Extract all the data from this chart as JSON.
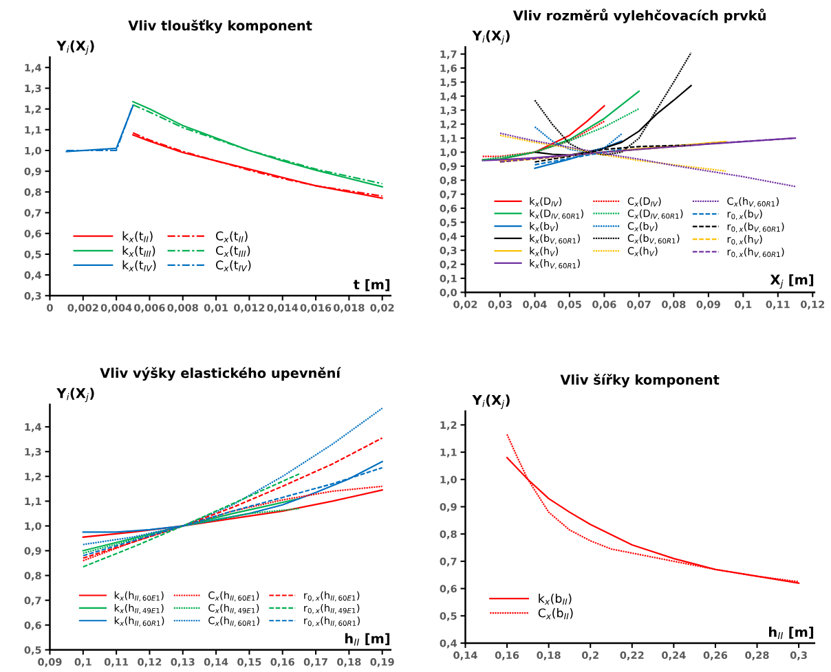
{
  "chart_data": [
    {
      "type": "line",
      "title": "Vliv tloušťky komponent",
      "xlabel": "t [m]",
      "ylabel": "Y$_{i}$(X$_{j}$)",
      "legend": "bottom left",
      "grid": false,
      "xlim": [
        0,
        0.0205
      ],
      "ylim": [
        0.3,
        1.45
      ],
      "xticks": [
        {
          "value": 0,
          "label": "0"
        },
        {
          "value": 0.002,
          "label": "0,002"
        },
        {
          "value": 0.004,
          "label": "0,004"
        },
        {
          "value": 0.006,
          "label": "0,006"
        },
        {
          "value": 0.008,
          "label": "0,008"
        },
        {
          "value": 0.01,
          "label": "0,01"
        },
        {
          "value": 0.012,
          "label": "0,012"
        },
        {
          "value": 0.014,
          "label": "0,014"
        },
        {
          "value": 0.016,
          "label": "0,016"
        },
        {
          "value": 0.018,
          "label": "0,018"
        },
        {
          "value": 0.02,
          "label": "0,02"
        }
      ],
      "yticks": [
        {
          "value": 0.3,
          "label": "0,3"
        },
        {
          "value": 0.4,
          "label": "0,4"
        },
        {
          "value": 0.5,
          "label": "0,5"
        },
        {
          "value": 0.6,
          "label": "0,6"
        },
        {
          "value": 0.7,
          "label": "0,7"
        },
        {
          "value": 0.8,
          "label": "0,8"
        },
        {
          "value": 0.9,
          "label": "0,9"
        },
        {
          "value": 1.0,
          "label": "1,0"
        },
        {
          "value": 1.1,
          "label": "1,1"
        },
        {
          "value": 1.2,
          "label": "1,2"
        },
        {
          "value": 1.3,
          "label": "1,3"
        },
        {
          "value": 1.4,
          "label": "1,4"
        }
      ],
      "series": [
        {
          "name": "k$_{x}$(t$_{II}$)",
          "color": "#ff0000",
          "line_style": "solid",
          "x": [
            0.005,
            0.006,
            0.008,
            0.01,
            0.012,
            0.014,
            0.016,
            0.018,
            0.02
          ],
          "values": [
            1.075,
            1.045,
            0.99,
            0.95,
            0.91,
            0.87,
            0.83,
            0.8,
            0.77
          ]
        },
        {
          "name": "k$_{x}$(t$_{III}$)",
          "color": "#00b050",
          "line_style": "solid",
          "x": [
            0.005,
            0.006,
            0.008,
            0.01,
            0.012,
            0.014,
            0.016,
            0.018,
            0.02
          ],
          "values": [
            1.235,
            1.2,
            1.12,
            1.06,
            1.0,
            0.95,
            0.905,
            0.865,
            0.825
          ]
        },
        {
          "name": "k$_{x}$(t$_{IV}$)",
          "color": "#0070c0",
          "line_style": "solid",
          "x": [
            0.001,
            0.004,
            0.005
          ],
          "values": [
            0.995,
            1.01,
            1.215
          ]
        },
        {
          "name": "C$_{x}$(t$_{II}$)",
          "color": "#ff0000",
          "line_style": "dashdot",
          "x": [
            0.005,
            0.006,
            0.008,
            0.01,
            0.012,
            0.014,
            0.016,
            0.018,
            0.02
          ],
          "values": [
            1.085,
            1.05,
            0.995,
            0.95,
            0.905,
            0.865,
            0.83,
            0.805,
            0.78
          ]
        },
        {
          "name": "C$_{x}$(t$_{III}$)",
          "color": "#00b050",
          "line_style": "dashdot",
          "x": [
            0.005,
            0.006,
            0.008,
            0.01,
            0.012,
            0.014,
            0.016,
            0.018,
            0.02
          ],
          "values": [
            1.22,
            1.185,
            1.11,
            1.055,
            1.0,
            0.955,
            0.91,
            0.875,
            0.84
          ]
        },
        {
          "name": "C$_{x}$(t$_{IV}$)",
          "color": "#0070c0",
          "line_style": "dashdot",
          "x": [
            0.001,
            0.004,
            0.005
          ],
          "values": [
            1.0,
            1.0,
            1.22
          ]
        }
      ]
    },
    {
      "type": "line",
      "title": "Vliv rozměrů vylehčovacích prvků",
      "xlabel": "X$_{j}$ [m]",
      "ylabel": "Y$_{i}$(X$_{j}$)",
      "legend": "bottom",
      "grid": false,
      "xlim": [
        0.02,
        0.1205
      ],
      "ylim": [
        0,
        1.75
      ],
      "xticks": [
        {
          "value": 0.02,
          "label": "0,02"
        },
        {
          "value": 0.03,
          "label": "0,03"
        },
        {
          "value": 0.04,
          "label": "0,04"
        },
        {
          "value": 0.05,
          "label": "0,05"
        },
        {
          "value": 0.06,
          "label": "0,06"
        },
        {
          "value": 0.07,
          "label": "0,07"
        },
        {
          "value": 0.08,
          "label": "0,08"
        },
        {
          "value": 0.09,
          "label": "0,09"
        },
        {
          "value": 0.1,
          "label": "0,1"
        },
        {
          "value": 0.11,
          "label": "0,11"
        },
        {
          "value": 0.12,
          "label": "0,12"
        }
      ],
      "yticks": [
        {
          "value": 0,
          "label": "0,0"
        },
        {
          "value": 0.1,
          "label": "0,1"
        },
        {
          "value": 0.2,
          "label": "0,2"
        },
        {
          "value": 0.3,
          "label": "0,3"
        },
        {
          "value": 0.4,
          "label": "0,4"
        },
        {
          "value": 0.5,
          "label": "0,5"
        },
        {
          "value": 0.6,
          "label": "0,6"
        },
        {
          "value": 0.7,
          "label": "0,7"
        },
        {
          "value": 0.8,
          "label": "0,8"
        },
        {
          "value": 0.9,
          "label": "0,9"
        },
        {
          "value": 1.0,
          "label": "1,0"
        },
        {
          "value": 1.1,
          "label": "1,1"
        },
        {
          "value": 1.2,
          "label": "1,2"
        },
        {
          "value": 1.3,
          "label": "1,3"
        },
        {
          "value": 1.4,
          "label": "1,4"
        },
        {
          "value": 1.5,
          "label": "1,5"
        },
        {
          "value": 1.6,
          "label": "1,6"
        },
        {
          "value": 1.7,
          "label": "1,7"
        }
      ],
      "series": [
        {
          "name": "k$_{x}$(D$_{IV}$)",
          "color": "#ff0000",
          "line_style": "solid",
          "x": [
            0.025,
            0.03,
            0.04,
            0.05,
            0.055,
            0.06
          ],
          "values": [
            0.945,
            0.95,
            1.0,
            1.12,
            1.22,
            1.33
          ]
        },
        {
          "name": "k$_{x}$(D$_{IV,60R1}$)",
          "color": "#00b050",
          "line_style": "solid",
          "x": [
            0.025,
            0.03,
            0.04,
            0.05,
            0.06,
            0.07
          ],
          "values": [
            0.945,
            0.95,
            1.0,
            1.09,
            1.24,
            1.435
          ]
        },
        {
          "name": "k$_{x}$(b$_{V}$)",
          "color": "#0070c0",
          "line_style": "solid",
          "x": [
            0.04,
            0.05,
            0.06,
            0.065
          ],
          "values": [
            0.885,
            0.95,
            1.03,
            1.08
          ]
        },
        {
          "name": "k$_{x}$(b$_{V,60R1}$)",
          "color": "#000000",
          "line_style": "solid",
          "x": [
            0.04,
            0.045,
            0.05,
            0.055,
            0.06,
            0.065,
            0.07,
            0.075,
            0.08,
            0.085
          ],
          "values": [
            1.0,
            0.985,
            0.98,
            1.0,
            1.03,
            1.07,
            1.15,
            1.27,
            1.37,
            1.475
          ]
        },
        {
          "name": "k$_{x}$(h$_{V}$)",
          "color": "#ffc000",
          "line_style": "solid",
          "x": [
            0.03,
            0.04,
            0.05,
            0.06,
            0.07,
            0.08,
            0.09,
            0.095
          ],
          "values": [
            0.935,
            0.955,
            0.98,
            1.0,
            1.025,
            1.045,
            1.065,
            1.075
          ]
        },
        {
          "name": "k$_{x}$(h$_{V,60R1}$)",
          "color": "#7030a0",
          "line_style": "solid",
          "x": [
            0.025,
            0.03,
            0.04,
            0.05,
            0.06,
            0.08,
            0.1,
            0.115
          ],
          "values": [
            0.94,
            0.945,
            0.96,
            0.98,
            1.0,
            1.04,
            1.075,
            1.1
          ]
        },
        {
          "name": "C$_{x}$(D$_{IV}$)",
          "color": "#ff0000",
          "line_style": "dotted",
          "x": [
            0.025,
            0.03,
            0.04,
            0.05,
            0.06
          ],
          "values": [
            0.97,
            0.97,
            1.0,
            1.08,
            1.22
          ]
        },
        {
          "name": "C$_{x}$(D$_{IV,60R1}$)",
          "color": "#00b050",
          "line_style": "dotted",
          "x": [
            0.025,
            0.04,
            0.05,
            0.06,
            0.07
          ],
          "values": [
            0.945,
            1.0,
            1.08,
            1.18,
            1.31
          ]
        },
        {
          "name": "C$_{x}$(b$_{V}$)",
          "color": "#0070c0",
          "line_style": "dotted",
          "x": [
            0.04,
            0.045,
            0.05,
            0.055,
            0.06,
            0.065
          ],
          "values": [
            1.18,
            1.08,
            1.02,
            1.0,
            1.03,
            1.13
          ]
        },
        {
          "name": "C$_{x}$(b$_{V,60R1}$)",
          "color": "#000000",
          "line_style": "dotted",
          "x": [
            0.04,
            0.045,
            0.05,
            0.055,
            0.06,
            0.065,
            0.07,
            0.075,
            0.08,
            0.085
          ],
          "values": [
            1.37,
            1.2,
            1.06,
            1.0,
            0.98,
            1.0,
            1.1,
            1.3,
            1.5,
            1.71
          ]
        },
        {
          "name": "C$_{x}$(h$_{V}$)",
          "color": "#ffc000",
          "line_style": "dotted",
          "x": [
            0.03,
            0.04,
            0.05,
            0.06,
            0.07,
            0.08,
            0.09,
            0.095
          ],
          "values": [
            1.12,
            1.07,
            1.03,
            0.98,
            0.94,
            0.91,
            0.88,
            0.865
          ]
        },
        {
          "name": "C$_{x}$(h$_{V,60R1}$)",
          "color": "#7030a0",
          "line_style": "dotted",
          "x": [
            0.03,
            0.04,
            0.05,
            0.06,
            0.07,
            0.08,
            0.09,
            0.1,
            0.115
          ],
          "values": [
            1.135,
            1.08,
            1.035,
            0.99,
            0.95,
            0.905,
            0.865,
            0.825,
            0.755
          ]
        },
        {
          "name": "r$_{0,x}$(b$_{V}$)",
          "color": "#0070c0",
          "line_style": "dashed",
          "x": [
            0.04,
            0.05,
            0.06,
            0.065
          ],
          "values": [
            0.91,
            0.955,
            1.0,
            1.02
          ]
        },
        {
          "name": "r$_{0,x}$(b$_{V,60R1}$)",
          "color": "#000000",
          "line_style": "dashed",
          "x": [
            0.04,
            0.05,
            0.06,
            0.07,
            0.085
          ],
          "values": [
            0.93,
            0.97,
            1.02,
            1.04,
            1.05
          ]
        },
        {
          "name": "r$_{0,x}$(h$_{V}$)",
          "color": "#ffc000",
          "line_style": "dashed",
          "x": [
            0.03,
            0.04,
            0.06,
            0.08,
            0.095
          ],
          "values": [
            0.93,
            0.95,
            1.0,
            1.04,
            1.075
          ]
        },
        {
          "name": "r$_{0,x}$(h$_{V,60R1}$)",
          "color": "#7030a0",
          "line_style": "dashed",
          "x": [
            0.03,
            0.06,
            0.09,
            0.115
          ],
          "values": [
            0.93,
            1.0,
            1.06,
            1.1
          ]
        }
      ]
    },
    {
      "type": "line",
      "title": "Vliv výšky elastického upevnění",
      "xlabel": "h$_{II}$ [m]",
      "ylabel": "Y$_{i}$(X$_{j}$)",
      "legend": "bottom",
      "grid": false,
      "xlim": [
        0.09,
        0.1925
      ],
      "ylim": [
        0.5,
        1.49
      ],
      "xticks": [
        {
          "value": 0.09,
          "label": "0,09"
        },
        {
          "value": 0.1,
          "label": "0,1"
        },
        {
          "value": 0.11,
          "label": "0,11"
        },
        {
          "value": 0.12,
          "label": "0,12"
        },
        {
          "value": 0.13,
          "label": "0,13"
        },
        {
          "value": 0.14,
          "label": "0,14"
        },
        {
          "value": 0.15,
          "label": "0,15"
        },
        {
          "value": 0.16,
          "label": "0,16"
        },
        {
          "value": 0.17,
          "label": "0,17"
        },
        {
          "value": 0.18,
          "label": "0,18"
        },
        {
          "value": 0.19,
          "label": "0,19"
        }
      ],
      "yticks": [
        {
          "value": 0.5,
          "label": "0,5"
        },
        {
          "value": 0.6,
          "label": "0,6"
        },
        {
          "value": 0.7,
          "label": "0,7"
        },
        {
          "value": 0.8,
          "label": "0,8"
        },
        {
          "value": 0.9,
          "label": "0,9"
        },
        {
          "value": 1.0,
          "label": "1,0"
        },
        {
          "value": 1.1,
          "label": "1,1"
        },
        {
          "value": 1.2,
          "label": "1,2"
        },
        {
          "value": 1.3,
          "label": "1,3"
        },
        {
          "value": 1.4,
          "label": "1,4"
        }
      ],
      "series": [
        {
          "name": "k$_{x}$(h$_{II,60E1}$)",
          "color": "#ff0000",
          "line_style": "solid",
          "x": [
            0.1,
            0.115,
            0.13,
            0.145,
            0.16,
            0.175,
            0.19
          ],
          "values": [
            0.955,
            0.975,
            1.0,
            1.03,
            1.06,
            1.1,
            1.145
          ]
        },
        {
          "name": "k$_{x}$(h$_{II,49E1}$)",
          "color": "#00b050",
          "line_style": "solid",
          "x": [
            0.1,
            0.115,
            0.13,
            0.145,
            0.155,
            0.165
          ],
          "values": [
            0.9,
            0.95,
            1.0,
            1.05,
            1.08,
            1.11
          ]
        },
        {
          "name": "k$_{x}$(h$_{II,60R1}$)",
          "color": "#0070c0",
          "line_style": "solid",
          "x": [
            0.1,
            0.11,
            0.12,
            0.13,
            0.14,
            0.15,
            0.16,
            0.17,
            0.18,
            0.19
          ],
          "values": [
            0.975,
            0.975,
            0.985,
            1.0,
            1.025,
            1.05,
            1.085,
            1.135,
            1.19,
            1.26
          ]
        },
        {
          "name": "C$_{x}$(h$_{II,60E1}$)",
          "color": "#ff0000",
          "line_style": "dotted",
          "x": [
            0.1,
            0.115,
            0.13,
            0.145,
            0.16,
            0.175,
            0.19
          ],
          "values": [
            0.86,
            0.935,
            1.0,
            1.06,
            1.105,
            1.14,
            1.16
          ]
        },
        {
          "name": "C$_{x}$(h$_{II,49E1}$)",
          "color": "#00b050",
          "line_style": "dotted",
          "x": [
            0.1,
            0.115,
            0.13,
            0.15,
            0.165
          ],
          "values": [
            0.89,
            0.945,
            1.0,
            1.05,
            1.07
          ]
        },
        {
          "name": "C$_{x}$(h$_{II,60R1}$)",
          "color": "#0070c0",
          "line_style": "dotted",
          "x": [
            0.1,
            0.115,
            0.13,
            0.145,
            0.16,
            0.175,
            0.19
          ],
          "values": [
            0.925,
            0.955,
            1.0,
            1.085,
            1.2,
            1.33,
            1.475
          ]
        },
        {
          "name": "r$_{0,x}$(h$_{II,60E1}$)",
          "color": "#ff0000",
          "line_style": "dashed",
          "x": [
            0.1,
            0.115,
            0.13,
            0.145,
            0.16,
            0.175,
            0.19
          ],
          "values": [
            0.87,
            0.935,
            1.0,
            1.075,
            1.16,
            1.25,
            1.355
          ]
        },
        {
          "name": "r$_{0,x}$(h$_{II,49E1}$)",
          "color": "#00b050",
          "line_style": "dashed",
          "x": [
            0.1,
            0.115,
            0.13,
            0.145,
            0.165
          ],
          "values": [
            0.835,
            0.915,
            1.0,
            1.09,
            1.21
          ]
        },
        {
          "name": "r$_{0,x}$(h$_{II,60R1}$)",
          "color": "#0070c0",
          "line_style": "dashed",
          "x": [
            0.1,
            0.115,
            0.13,
            0.145,
            0.16,
            0.175,
            0.19
          ],
          "values": [
            0.88,
            0.94,
            1.0,
            1.06,
            1.115,
            1.17,
            1.235
          ]
        }
      ]
    },
    {
      "type": "line",
      "title": "Vliv šířky komponent",
      "xlabel": "h$_{II}$ [m]",
      "ylabel": "Y$_{i}$(X$_{j}$)",
      "legend": "bottom left",
      "grid": false,
      "xlim": [
        0.14,
        0.3075
      ],
      "ylim": [
        0.4,
        1.25
      ],
      "xticks": [
        {
          "value": 0.14,
          "label": "0,14"
        },
        {
          "value": 0.16,
          "label": "0,16"
        },
        {
          "value": 0.18,
          "label": "0,18"
        },
        {
          "value": 0.2,
          "label": "0,2"
        },
        {
          "value": 0.22,
          "label": "0,22"
        },
        {
          "value": 0.24,
          "label": "0,24"
        },
        {
          "value": 0.26,
          "label": "0,26"
        },
        {
          "value": 0.28,
          "label": "0,28"
        },
        {
          "value": 0.3,
          "label": "0,3"
        }
      ],
      "yticks": [
        {
          "value": 0.4,
          "label": "0,4"
        },
        {
          "value": 0.5,
          "label": "0,5"
        },
        {
          "value": 0.6,
          "label": "0,6"
        },
        {
          "value": 0.7,
          "label": "0,7"
        },
        {
          "value": 0.8,
          "label": "0,8"
        },
        {
          "value": 0.9,
          "label": "0,9"
        },
        {
          "value": 1.0,
          "label": "1,0"
        },
        {
          "value": 1.1,
          "label": "1,1"
        },
        {
          "value": 1.2,
          "label": "1,2"
        }
      ],
      "series": [
        {
          "name": "k$_{x}$(b$_{II}$)",
          "color": "#ff0000",
          "line_style": "solid",
          "x": [
            0.16,
            0.17,
            0.18,
            0.19,
            0.2,
            0.22,
            0.24,
            0.26,
            0.28,
            0.3
          ],
          "values": [
            1.08,
            1.0,
            0.93,
            0.88,
            0.835,
            0.76,
            0.71,
            0.67,
            0.645,
            0.62
          ]
        },
        {
          "name": "C$_{x}$(b$_{II}$)",
          "color": "#ff0000",
          "line_style": "dotted",
          "x": [
            0.16,
            0.165,
            0.17,
            0.18,
            0.19,
            0.2,
            0.21,
            0.22,
            0.24,
            0.26,
            0.28,
            0.3
          ],
          "values": [
            1.165,
            1.08,
            1.0,
            0.88,
            0.815,
            0.775,
            0.745,
            0.73,
            0.7,
            0.67,
            0.645,
            0.625
          ]
        }
      ]
    }
  ]
}
